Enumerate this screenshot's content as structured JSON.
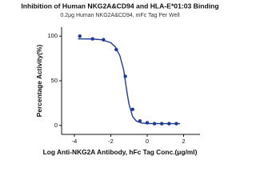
{
  "chart_data": {
    "type": "scatter",
    "title": "Inhibition of Human NKG2A&CD94 and HLA-E*01:03 Binding",
    "subtitle": "0.2μg Human NKG2A&CD94, mFc Tag Per Well",
    "xlabel": "Log Anti-NKG2A Antibody, hFc Tag Conc.(μg/ml)",
    "ylabel": "Percentage Activity(%)",
    "xlim": [
      -4.7,
      2.9
    ],
    "ylim": [
      -10,
      110
    ],
    "xticks": [
      -4,
      -2,
      0,
      2
    ],
    "yticks": [
      0,
      50,
      100
    ],
    "series": [
      {
        "color": "#1f3a93",
        "mode": "markers",
        "x": [
          -3.7,
          -3.0,
          -2.4,
          -1.7,
          -1.2,
          -0.8,
          -0.4,
          0,
          0.4,
          0.8,
          1.2,
          1.6
        ],
        "values": [
          100,
          97,
          96,
          85,
          55,
          18,
          5,
          3,
          2,
          2,
          2,
          2
        ]
      },
      {
        "color": "#1f3a93",
        "mode": "line",
        "x": [
          -3.8,
          -3.0,
          -2.5,
          -2.0,
          -1.75,
          -1.5,
          -1.3,
          -1.2,
          -1.1,
          -1.0,
          -0.8,
          -0.6,
          -0.3,
          0,
          1.0,
          1.8
        ],
        "values": [
          97,
          96.8,
          96,
          92.7,
          88,
          78,
          63,
          49.5,
          36,
          24,
          10,
          5,
          2.7,
          2.2,
          2,
          2
        ]
      }
    ]
  }
}
